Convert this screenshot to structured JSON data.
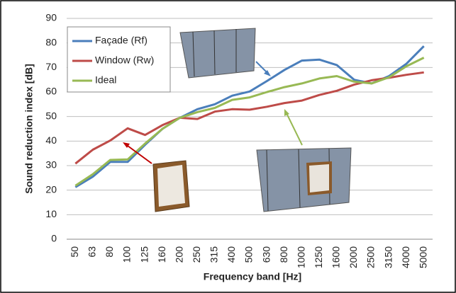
{
  "chart_data": {
    "type": "line",
    "x_label": "Frequency band [Hz]",
    "y_label": "Sound reduction index [dB]",
    "categories": [
      "50",
      "63",
      "80",
      "100",
      "125",
      "160",
      "200",
      "250",
      "315",
      "400",
      "500",
      "630",
      "800",
      "1000",
      "1250",
      "1600",
      "2000",
      "2500",
      "3150",
      "4000",
      "5000"
    ],
    "series": [
      {
        "name": "Façade (Rf)",
        "color": "#4a7ebb",
        "values": [
          21.2,
          25.5,
          31.5,
          31.5,
          38.5,
          45,
          49.5,
          53,
          55,
          58.5,
          60.2,
          64.5,
          69,
          72.8,
          73.2,
          71,
          65,
          63.5,
          66.5,
          71.5,
          78.7
        ]
      },
      {
        "name": "Window (Rw)",
        "color": "#be4b48",
        "values": [
          30.8,
          36.5,
          40.2,
          45.2,
          42.5,
          46.5,
          49.5,
          49,
          52,
          53,
          52.8,
          54,
          55.5,
          56.5,
          58.8,
          60.5,
          63,
          64.8,
          65.8,
          67,
          68
        ]
      },
      {
        "name": "Ideal",
        "color": "#98b954",
        "values": [
          21.8,
          26.5,
          32.3,
          32.5,
          39,
          45,
          49.5,
          51.8,
          53.5,
          56.8,
          57.8,
          60,
          62,
          63.5,
          65.5,
          66.5,
          64.2,
          63.5,
          66,
          70.5,
          74
        ]
      }
    ],
    "ylim": [
      0,
      90
    ],
    "yticks": [
      0,
      10,
      20,
      30,
      40,
      50,
      60,
      70,
      80,
      90
    ],
    "grid": true,
    "legend": "top-left"
  }
}
